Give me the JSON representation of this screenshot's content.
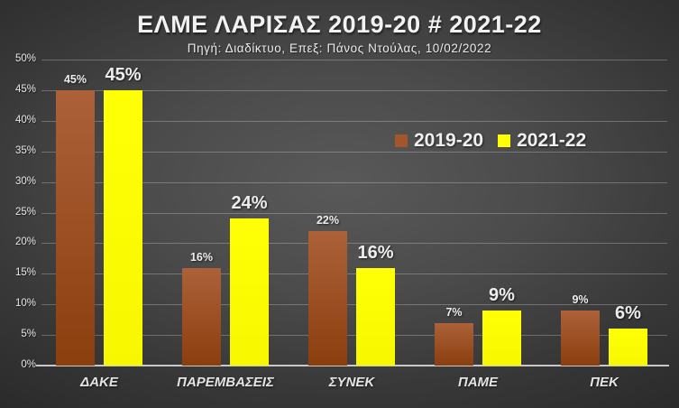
{
  "title": "ΕΛΜΕ ΛΑΡΙΣΑΣ 2019-20 # 2021-22",
  "subtitle": "Πηγή: Διαδίκτυο, Επεξ: Πάνος Ντούλας, 10/02/2022",
  "chart_data": {
    "type": "bar",
    "categories": [
      "ΔΑΚΕ",
      "ΠΑΡΕΜΒΑΣΕΙΣ",
      "ΣΥΝΕΚ",
      "ΠΑΜΕ",
      "ΠΕΚ"
    ],
    "series": [
      {
        "name": "2019-20",
        "values": [
          45,
          16,
          22,
          7,
          9
        ],
        "labels": [
          "45%",
          "16%",
          "22%",
          "7%",
          "9%"
        ],
        "color": "#A4552C"
      },
      {
        "name": "2021-22",
        "values": [
          45,
          24,
          16,
          9,
          6
        ],
        "labels": [
          "45%",
          "24%",
          "16%",
          "9%",
          "6%"
        ],
        "color": "#FFFF00"
      }
    ],
    "xlabel": "",
    "ylabel": "",
    "ylim": [
      0,
      50
    ],
    "ytick_step": 5,
    "ytick_labels": [
      "0%",
      "5%",
      "10%",
      "15%",
      "20%",
      "25%",
      "30%",
      "35%",
      "40%",
      "45%",
      "50%"
    ],
    "grid": true,
    "legend_position": "center-right"
  },
  "colors": {
    "background_center": "#595959",
    "background_edge": "#262626",
    "series_2019_20_top": "#AC6139",
    "series_2019_20_bottom": "#8B3E0E",
    "series_2021_22": "#FFFF00",
    "gridline": "#8C8C8C",
    "axis_line": "#C8C8C8",
    "text": "#F2F2F2"
  }
}
